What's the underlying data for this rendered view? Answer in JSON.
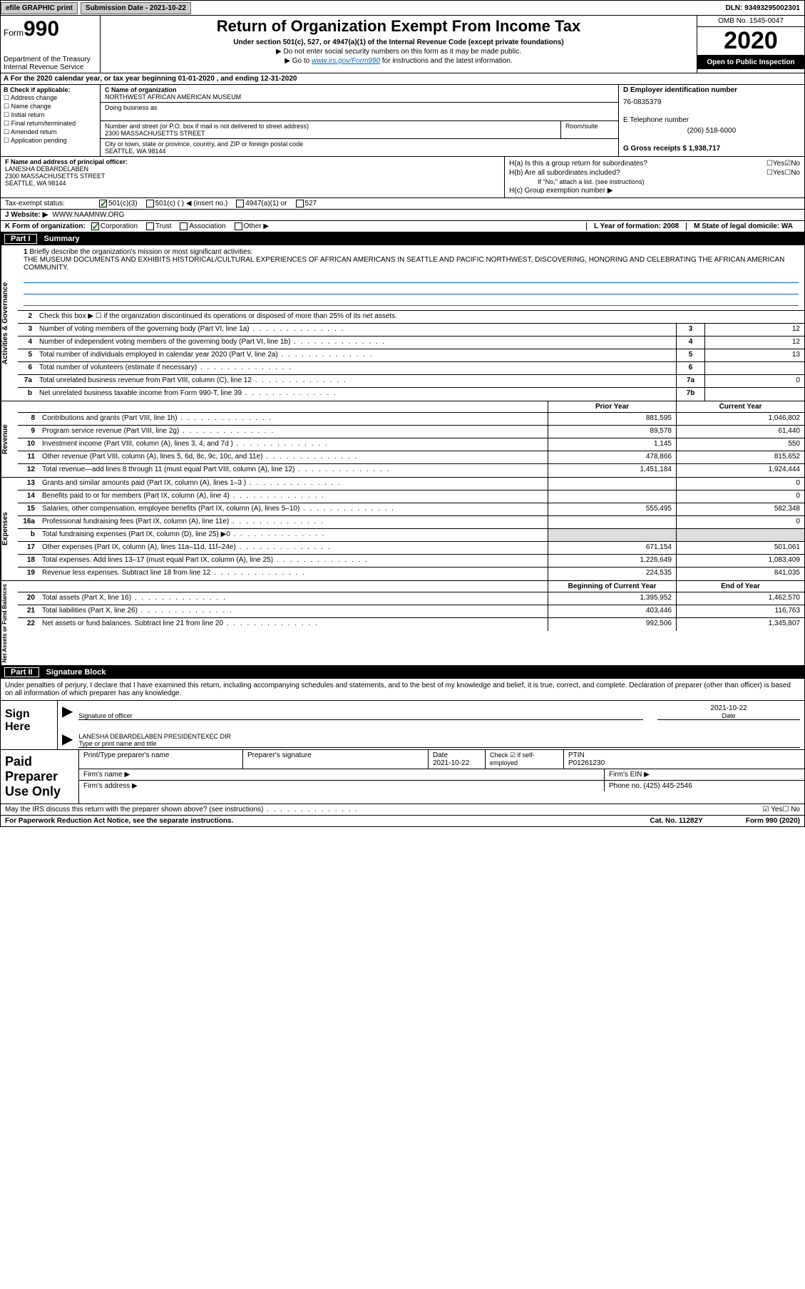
{
  "topbar": {
    "efile_label": "efile GRAPHIC print",
    "submission_label": "Submission Date - 2021-10-22",
    "dln": "DLN: 93493295002301"
  },
  "header": {
    "form_prefix": "Form",
    "form_number": "990",
    "dept": "Department of the Treasury",
    "irs": "Internal Revenue Service",
    "title": "Return of Organization Exempt From Income Tax",
    "subtitle": "Under section 501(c), 527, or 4947(a)(1) of the Internal Revenue Code (except private foundations)",
    "line1": "▶ Do not enter social security numbers on this form as it may be made public.",
    "line2_pre": "▶ Go to ",
    "line2_link": "www.irs.gov/Form990",
    "line2_post": " for instructions and the latest information.",
    "omb": "OMB No. 1545-0047",
    "year": "2020",
    "open": "Open to Public Inspection"
  },
  "line_a": "For the 2020 calendar year, or tax year beginning 01-01-2020    , and ending 12-31-2020",
  "box_b": {
    "title": "B Check if applicable:",
    "opts": [
      "Address change",
      "Name change",
      "Initial return",
      "Final return/terminated",
      "Amended return",
      "Application pending"
    ]
  },
  "box_c": {
    "name_lbl": "C Name of organization",
    "name": "NORTHWEST AFRICAN AMERICAN MUSEUM",
    "dba_lbl": "Doing business as",
    "addr_lbl": "Number and street (or P.O. box if mail is not delivered to street address)",
    "room_lbl": "Room/suite",
    "addr": "2300 MASSACHUSETTS STREET",
    "city_lbl": "City or town, state or province, country, and ZIP or foreign postal code",
    "city": "SEATTLE, WA  98144"
  },
  "box_d": {
    "lbl": "D Employer identification number",
    "ein": "76-0835379",
    "tel_lbl": "E Telephone number",
    "tel": "(206) 518-6000",
    "gross_lbl": "G Gross receipts $ 1,938,717"
  },
  "box_f": {
    "lbl": "F  Name and address of principal officer:",
    "name": "LANESHA DEBARDELABEN",
    "addr": "2300 MASSACHUSETTS STREET",
    "city": "SEATTLE, WA  98144"
  },
  "box_h": {
    "a_lbl": "H(a)  Is this a group return for subordinates?",
    "b_lbl": "H(b)  Are all subordinates included?",
    "ifno": "If \"No,\" attach a list. (see instructions)",
    "c_lbl": "H(c)  Group exemption number ▶"
  },
  "tax_status": {
    "lbl": "Tax-exempt status:",
    "o1": "501(c)(3)",
    "o2": "501(c) (  ) ◀ (insert no.)",
    "o3": "4947(a)(1) or",
    "o4": "527"
  },
  "website": {
    "lbl": "J     Website: ▶",
    "val": "WWW.NAAMNW.ORG"
  },
  "line_k": {
    "lbl": "K Form of organization:",
    "o1": "Corporation",
    "o2": "Trust",
    "o3": "Association",
    "o4": "Other ▶",
    "l_lbl": "L Year of formation: 2008",
    "m_lbl": "M State of legal domicile: WA"
  },
  "part1": {
    "num": "Part I",
    "title": "Summary",
    "l1_lbl": "Briefly describe the organization's mission or most significant activities:",
    "l1_text": "THE MUSEUM DOCUMENTS AND EXHIBITS HISTORICAL/CULTURAL EXPERIENCES OF AFRICAN AMERICANS IN SEATTLE AND PACIFIC NORTHWEST, DISCOVERING, HONORING AND CELEBRATING THE AFRICAN AMERICAN COMMUNITY.",
    "l2": "Check this box ▶ ☐  if the organization discontinued its operations or disposed of more than 25% of its net assets.",
    "rows": [
      {
        "n": "3",
        "d": "Number of voting members of the governing body (Part VI, line 1a)",
        "b": "3",
        "v": "12"
      },
      {
        "n": "4",
        "d": "Number of independent voting members of the governing body (Part VI, line 1b)",
        "b": "4",
        "v": "12"
      },
      {
        "n": "5",
        "d": "Total number of individuals employed in calendar year 2020 (Part V, line 2a)",
        "b": "5",
        "v": "13"
      },
      {
        "n": "6",
        "d": "Total number of volunteers (estimate if necessary)",
        "b": "6",
        "v": ""
      },
      {
        "n": "7a",
        "d": "Total unrelated business revenue from Part VIII, column (C), line 12",
        "b": "7a",
        "v": "0"
      },
      {
        "n": "b",
        "d": "Net unrelated business taxable income from Form 990-T, line 39",
        "b": "7b",
        "v": ""
      }
    ],
    "hdr_prior": "Prior Year",
    "hdr_curr": "Current Year",
    "revenue": [
      {
        "n": "8",
        "d": "Contributions and grants (Part VIII, line 1h)",
        "p": "881,595",
        "c": "1,046,802"
      },
      {
        "n": "9",
        "d": "Program service revenue (Part VIII, line 2g)",
        "p": "89,578",
        "c": "61,440"
      },
      {
        "n": "10",
        "d": "Investment income (Part VIII, column (A), lines 3, 4, and 7d )",
        "p": "1,145",
        "c": "550"
      },
      {
        "n": "11",
        "d": "Other revenue (Part VIII, column (A), lines 5, 6d, 8c, 9c, 10c, and 11e)",
        "p": "478,866",
        "c": "815,652"
      },
      {
        "n": "12",
        "d": "Total revenue—add lines 8 through 11 (must equal Part VIII, column (A), line 12)",
        "p": "1,451,184",
        "c": "1,924,444"
      }
    ],
    "expenses": [
      {
        "n": "13",
        "d": "Grants and similar amounts paid (Part IX, column (A), lines 1–3 )",
        "p": "",
        "c": "0"
      },
      {
        "n": "14",
        "d": "Benefits paid to or for members (Part IX, column (A), line 4)",
        "p": "",
        "c": "0"
      },
      {
        "n": "15",
        "d": "Salaries, other compensation, employee benefits (Part IX, column (A), lines 5–10)",
        "p": "555,495",
        "c": "582,348"
      },
      {
        "n": "16a",
        "d": "Professional fundraising fees (Part IX, column (A), line 11e)",
        "p": "",
        "c": "0"
      },
      {
        "n": "b",
        "d": "Total fundraising expenses (Part IX, column (D), line 25) ▶0",
        "p": "shade",
        "c": "shade"
      },
      {
        "n": "17",
        "d": "Other expenses (Part IX, column (A), lines 11a–11d, 11f–24e)",
        "p": "671,154",
        "c": "501,061"
      },
      {
        "n": "18",
        "d": "Total expenses. Add lines 13–17 (must equal Part IX, column (A), line 25)",
        "p": "1,226,649",
        "c": "1,083,409"
      },
      {
        "n": "19",
        "d": "Revenue less expenses. Subtract line 18 from line 12",
        "p": "224,535",
        "c": "841,035"
      }
    ],
    "hdr_begin": "Beginning of Current Year",
    "hdr_end": "End of Year",
    "netassets": [
      {
        "n": "20",
        "d": "Total assets (Part X, line 16)",
        "p": "1,395,952",
        "c": "1,462,570"
      },
      {
        "n": "21",
        "d": "Total liabilities (Part X, line 26)",
        "p": "403,446",
        "c": "116,763"
      },
      {
        "n": "22",
        "d": "Net assets or fund balances. Subtract line 21 from line 20",
        "p": "992,506",
        "c": "1,345,807"
      }
    ],
    "side_ag": "Activities & Governance",
    "side_rev": "Revenue",
    "side_exp": "Expenses",
    "side_net": "Net Assets or Fund Balances"
  },
  "part2": {
    "num": "Part II",
    "title": "Signature Block",
    "penalty": "Under penalties of perjury, I declare that I have examined this return, including accompanying schedules and statements, and to the best of my knowledge and belief, it is true, correct, and complete. Declaration of preparer (other than officer) is based on all information of which preparer has any knowledge.",
    "sign_here": "Sign Here",
    "sig_lbl": "Signature of officer",
    "date_lbl": "Date",
    "date_val": "2021-10-22",
    "name_title": "LANESHA DEBARDELABEN  PRESIDENTEXEC DIR",
    "type_lbl": "Type or print name and title",
    "paid": "Paid Preparer Use Only",
    "p_name_lbl": "Print/Type preparer's name",
    "p_sig_lbl": "Preparer's signature",
    "p_date_lbl": "Date",
    "p_date": "2021-10-22",
    "p_check_lbl": "Check ☑ if self-employed",
    "ptin_lbl": "PTIN",
    "ptin": "P01261230",
    "firm_name_lbl": "Firm's name     ▶",
    "firm_ein_lbl": "Firm's EIN ▶",
    "firm_addr_lbl": "Firm's address ▶",
    "phone_lbl": "Phone no. (425) 445-2546",
    "discuss": "May the IRS discuss this return with the preparer shown above? (see instructions)",
    "paperwork": "For Paperwork Reduction Act Notice, see the separate instructions.",
    "cat": "Cat. No. 11282Y",
    "formfoot": "Form 990 (2020)"
  }
}
